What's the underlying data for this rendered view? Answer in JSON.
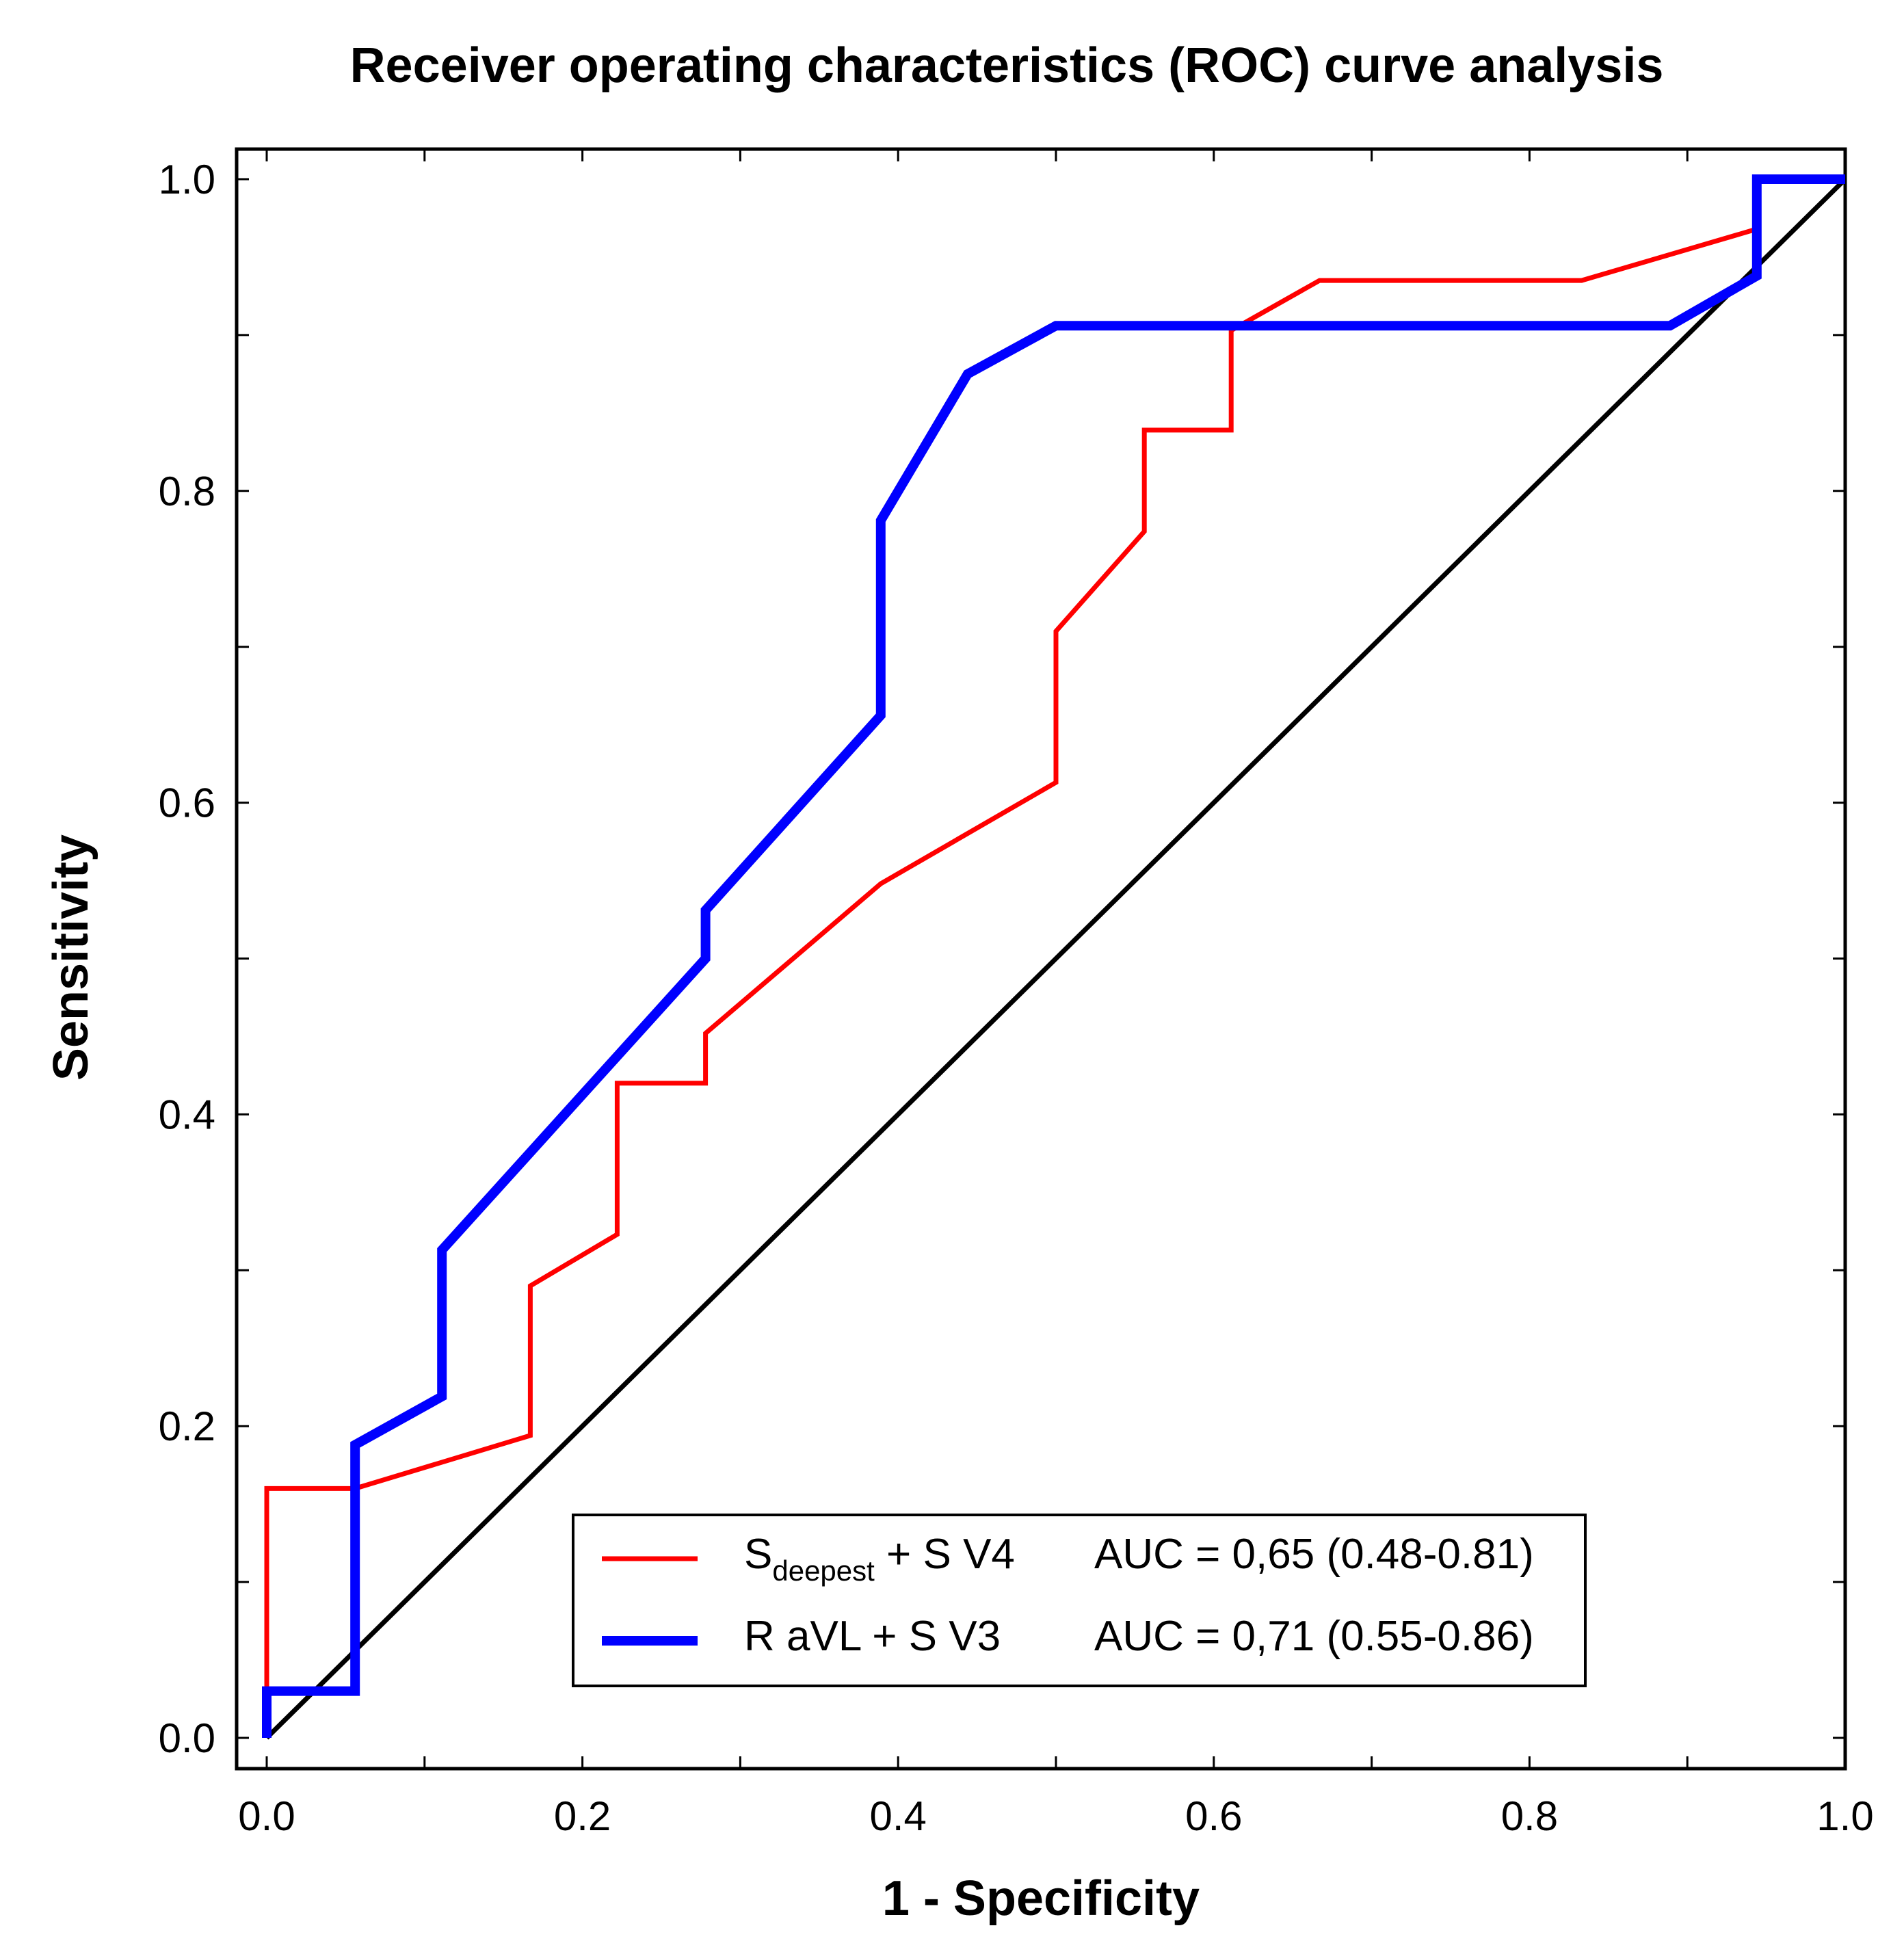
{
  "chart_data": {
    "type": "line",
    "title": "Receiver operating characteristics (ROC) curve analysis",
    "xlabel": "1 - Specificity",
    "ylabel": "Sensitivity",
    "xlim": [
      0,
      1
    ],
    "ylim": [
      0,
      1
    ],
    "xticks": [
      "0.0",
      "0.2",
      "0.4",
      "0.6",
      "0.8",
      "1.0"
    ],
    "yticks": [
      "0.0",
      "0.2",
      "0.4",
      "0.6",
      "0.8",
      "1.0"
    ],
    "grid": false,
    "legend_position": "bottom-right",
    "series": [
      {
        "name": "S deepest + S V4",
        "label_main": "S",
        "label_sub": "deepest",
        "label_rest": " + S V4",
        "auc_text": "AUC = 0,65 (0.48-0.81)",
        "color": "#ff0000",
        "points": [
          [
            0,
            0.03
          ],
          [
            0,
            0.16
          ],
          [
            0.056,
            0.16
          ],
          [
            0.167,
            0.194
          ],
          [
            0.167,
            0.29
          ],
          [
            0.222,
            0.323
          ],
          [
            0.222,
            0.42
          ],
          [
            0.278,
            0.42
          ],
          [
            0.278,
            0.452
          ],
          [
            0.389,
            0.548
          ],
          [
            0.5,
            0.613
          ],
          [
            0.5,
            0.71
          ],
          [
            0.556,
            0.774
          ],
          [
            0.556,
            0.839
          ],
          [
            0.611,
            0.839
          ],
          [
            0.611,
            0.903
          ],
          [
            0.667,
            0.935
          ],
          [
            0.833,
            0.935
          ],
          [
            0.944,
            0.968
          ],
          [
            0.944,
            1.0
          ],
          [
            1.0,
            1.0
          ]
        ]
      },
      {
        "name": "R aVL + S V3",
        "label_main": "R aVL + S V3",
        "auc_text": "AUC = 0,71 (0.55-0.86)",
        "color": "#0000ff",
        "points": [
          [
            0,
            0
          ],
          [
            0,
            0.03
          ],
          [
            0.056,
            0.03
          ],
          [
            0.056,
            0.188
          ],
          [
            0.111,
            0.219
          ],
          [
            0.111,
            0.313
          ],
          [
            0.278,
            0.5
          ],
          [
            0.278,
            0.531
          ],
          [
            0.389,
            0.656
          ],
          [
            0.389,
            0.781
          ],
          [
            0.444,
            0.875
          ],
          [
            0.5,
            0.906
          ],
          [
            0.889,
            0.906
          ],
          [
            0.944,
            0.938
          ],
          [
            0.944,
            1.0
          ],
          [
            1.0,
            1.0
          ]
        ]
      },
      {
        "name": "Reference line",
        "color": "#000000",
        "points": [
          [
            0,
            0
          ],
          [
            1,
            1
          ]
        ]
      }
    ]
  }
}
